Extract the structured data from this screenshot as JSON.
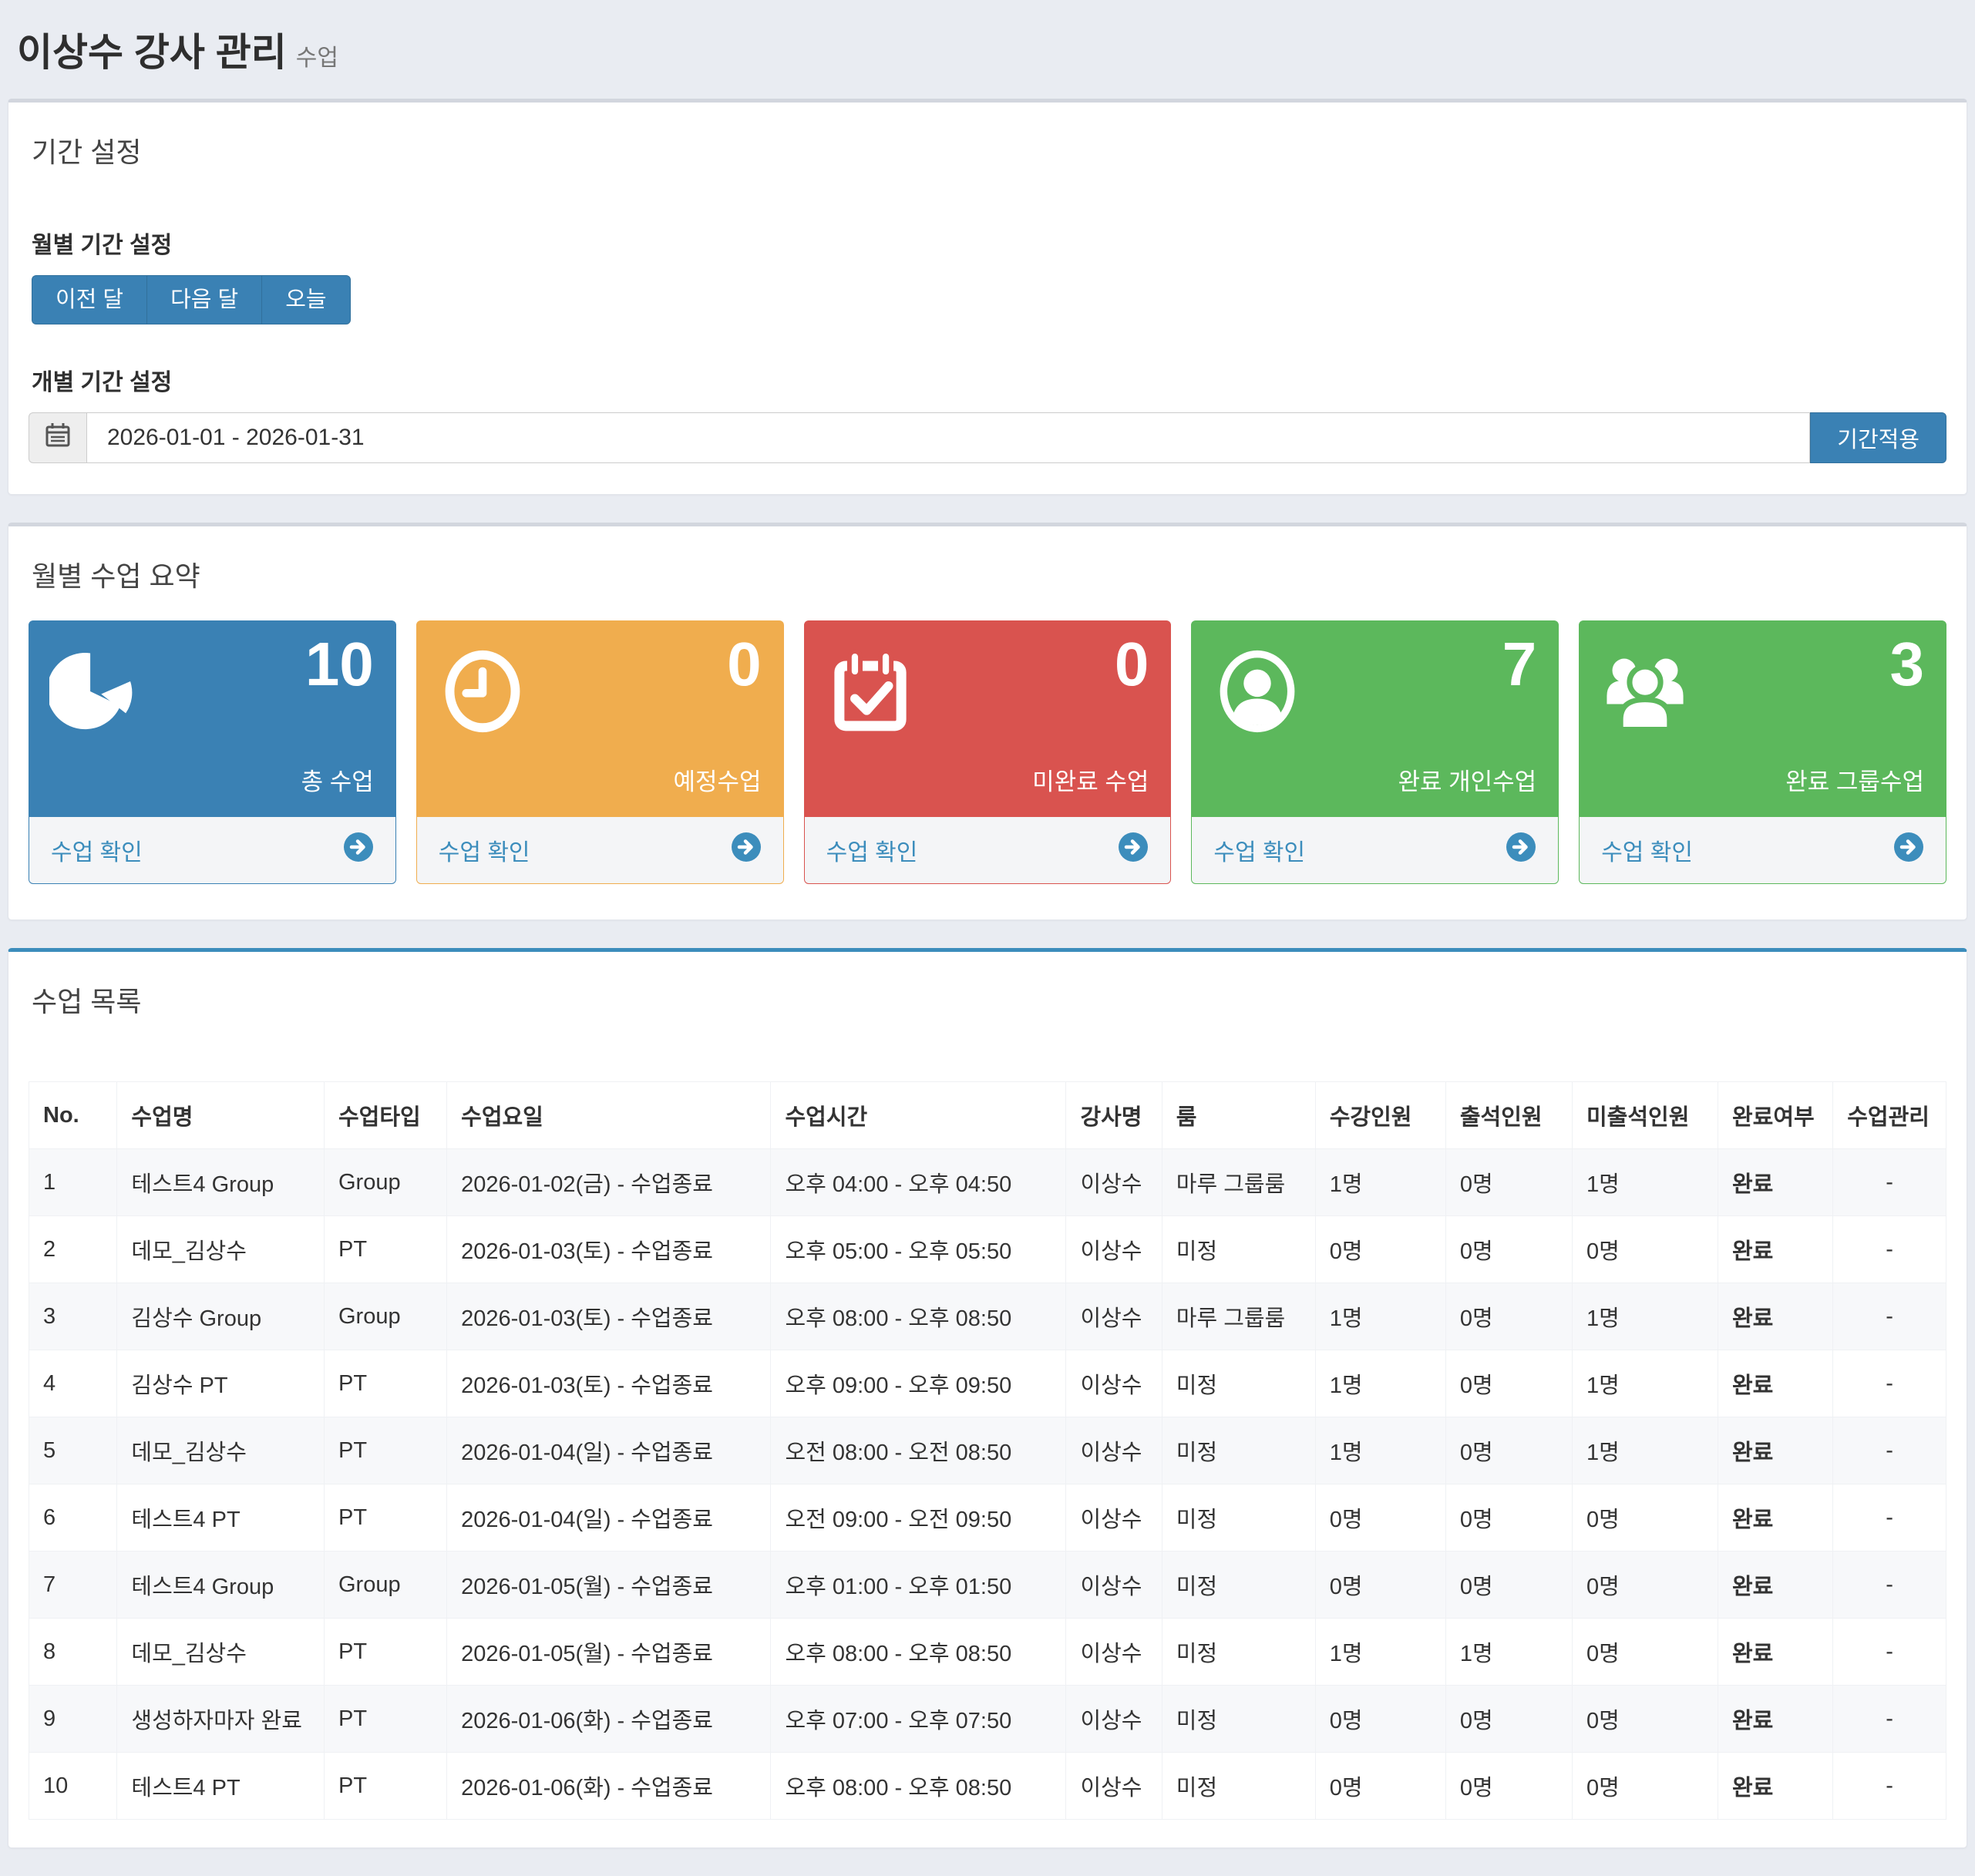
{
  "page": {
    "title": "이상수 강사 관리",
    "subtitle": "수업"
  },
  "theme": {
    "primary_blue": "#3a81b4",
    "link_blue": "#3c8dbc",
    "warning_orange": "#f0ad4e",
    "danger_red": "#d9534f",
    "success_green": "#5cb85c",
    "page_background": "#e9ecf2"
  },
  "period_panel": {
    "heading": "기간 설정",
    "monthly_label": "월별 기간 설정",
    "buttons": [
      {
        "label": "이전 달"
      },
      {
        "label": "다음 달"
      },
      {
        "label": "오늘"
      }
    ],
    "individual_label": "개별 기간 설정",
    "date_range_value": "2026-01-01 - 2026-01-31",
    "apply_button": "기간적용"
  },
  "summary_panel": {
    "heading": "월별 수업 요약",
    "cards": [
      {
        "value": "10",
        "label": "총 수업",
        "footer": "수업 확인",
        "color": "#3a81b4",
        "icon": "pie-chart-icon"
      },
      {
        "value": "0",
        "label": "예정수업",
        "footer": "수업 확인",
        "color": "#f0ad4e",
        "icon": "clock-icon"
      },
      {
        "value": "0",
        "label": "미완료 수업",
        "footer": "수업 확인",
        "color": "#d9534f",
        "icon": "calendar-check-icon"
      },
      {
        "value": "7",
        "label": "완료 개인수업",
        "footer": "수업 확인",
        "color": "#5cb85c",
        "icon": "user-icon"
      },
      {
        "value": "3",
        "label": "완료 그룹수업",
        "footer": "수업 확인",
        "color": "#5cb85c",
        "icon": "users-icon"
      }
    ]
  },
  "list_panel": {
    "heading": "수업 목록",
    "columns": [
      "No.",
      "수업명",
      "수업타입",
      "수업요일",
      "수업시간",
      "강사명",
      "룸",
      "수강인원",
      "출석인원",
      "미출석인원",
      "완료여부",
      "수업관리"
    ],
    "rows": [
      [
        "1",
        "테스트4 Group",
        "Group",
        "2026-01-02(금) - 수업종료",
        "오후 04:00 - 오후 04:50",
        "이상수",
        "마루 그룹룸",
        "1명",
        "0명",
        "1명",
        "완료",
        "-"
      ],
      [
        "2",
        "데모_김상수",
        "PT",
        "2026-01-03(토) - 수업종료",
        "오후 05:00 - 오후 05:50",
        "이상수",
        "미정",
        "0명",
        "0명",
        "0명",
        "완료",
        "-"
      ],
      [
        "3",
        "김상수 Group",
        "Group",
        "2026-01-03(토) - 수업종료",
        "오후 08:00 - 오후 08:50",
        "이상수",
        "마루 그룹룸",
        "1명",
        "0명",
        "1명",
        "완료",
        "-"
      ],
      [
        "4",
        "김상수 PT",
        "PT",
        "2026-01-03(토) - 수업종료",
        "오후 09:00 - 오후 09:50",
        "이상수",
        "미정",
        "1명",
        "0명",
        "1명",
        "완료",
        "-"
      ],
      [
        "5",
        "데모_김상수",
        "PT",
        "2026-01-04(일) - 수업종료",
        "오전 08:00 - 오전 08:50",
        "이상수",
        "미정",
        "1명",
        "0명",
        "1명",
        "완료",
        "-"
      ],
      [
        "6",
        "테스트4 PT",
        "PT",
        "2026-01-04(일) - 수업종료",
        "오전 09:00 - 오전 09:50",
        "이상수",
        "미정",
        "0명",
        "0명",
        "0명",
        "완료",
        "-"
      ],
      [
        "7",
        "테스트4 Group",
        "Group",
        "2026-01-05(월) - 수업종료",
        "오후 01:00 - 오후 01:50",
        "이상수",
        "미정",
        "0명",
        "0명",
        "0명",
        "완료",
        "-"
      ],
      [
        "8",
        "데모_김상수",
        "PT",
        "2026-01-05(월) - 수업종료",
        "오후 08:00 - 오후 08:50",
        "이상수",
        "미정",
        "1명",
        "1명",
        "0명",
        "완료",
        "-"
      ],
      [
        "9",
        "생성하자마자 완료",
        "PT",
        "2026-01-06(화) - 수업종료",
        "오후 07:00 - 오후 07:50",
        "이상수",
        "미정",
        "0명",
        "0명",
        "0명",
        "완료",
        "-"
      ],
      [
        "10",
        "테스트4 PT",
        "PT",
        "2026-01-06(화) - 수업종료",
        "오후 08:00 - 오후 08:50",
        "이상수",
        "미정",
        "0명",
        "0명",
        "0명",
        "완료",
        "-"
      ]
    ]
  }
}
